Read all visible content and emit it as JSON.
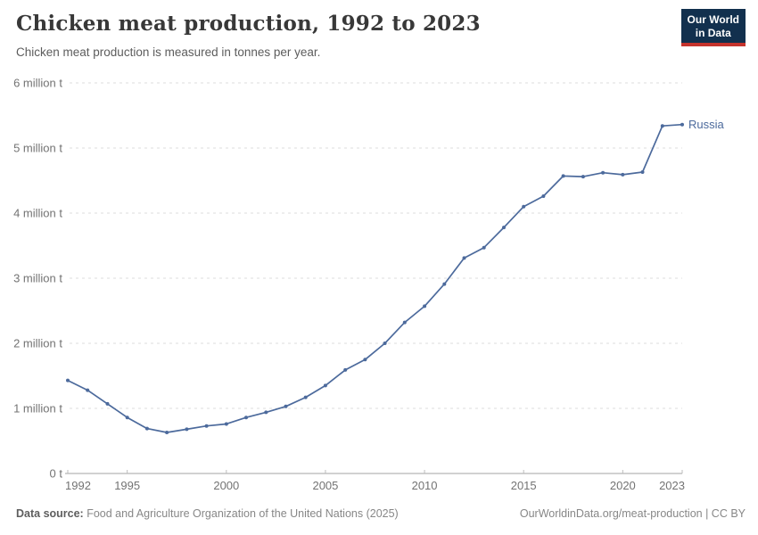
{
  "header": {
    "title": "Chicken meat production, 1992 to 2023",
    "subtitle": "Chicken meat production is measured in tonnes per year.",
    "logo": {
      "line1": "Our World",
      "line2": "in Data"
    }
  },
  "chart_data": {
    "type": "line",
    "title": "Chicken meat production, 1992 to 2023",
    "xlabel": "",
    "ylabel": "",
    "value_unit": "million tonnes per year",
    "grid": "dashed horizontal gridlines",
    "legend_position": "end-of-line label",
    "ylim": [
      0,
      6
    ],
    "x": [
      1992,
      1993,
      1994,
      1995,
      1996,
      1997,
      1998,
      1999,
      2000,
      2001,
      2002,
      2003,
      2004,
      2005,
      2006,
      2007,
      2008,
      2009,
      2010,
      2011,
      2012,
      2013,
      2014,
      2015,
      2016,
      2017,
      2018,
      2019,
      2020,
      2021,
      2022,
      2023
    ],
    "series": [
      {
        "name": "Russia",
        "color": "#4c6a9c",
        "values": [
          1.43,
          1.28,
          1.07,
          0.86,
          0.69,
          0.63,
          0.68,
          0.73,
          0.76,
          0.86,
          0.94,
          1.03,
          1.17,
          1.35,
          1.59,
          1.75,
          2.0,
          2.32,
          2.57,
          2.91,
          3.31,
          3.47,
          3.78,
          4.1,
          4.26,
          4.57,
          4.56,
          4.62,
          4.59,
          4.63,
          5.34,
          5.36
        ]
      }
    ],
    "y_ticks": [
      {
        "value": 0,
        "label": "0 t"
      },
      {
        "value": 1,
        "label": "1 million t"
      },
      {
        "value": 2,
        "label": "2 million t"
      },
      {
        "value": 3,
        "label": "3 million t"
      },
      {
        "value": 4,
        "label": "4 million t"
      },
      {
        "value": 5,
        "label": "5 million t"
      },
      {
        "value": 6,
        "label": "6 million t"
      }
    ],
    "x_ticks": [
      {
        "value": 1992,
        "label": "1992"
      },
      {
        "value": 1995,
        "label": "1995"
      },
      {
        "value": 2000,
        "label": "2000"
      },
      {
        "value": 2005,
        "label": "2005"
      },
      {
        "value": 2010,
        "label": "2010"
      },
      {
        "value": 2015,
        "label": "2015"
      },
      {
        "value": 2020,
        "label": "2020"
      },
      {
        "value": 2023,
        "label": "2023"
      }
    ]
  },
  "footer": {
    "source_label": "Data source:",
    "source_text": " Food and Agriculture Organization of the United Nations (2025)",
    "link_text": "OurWorldinData.org/meat-production | CC BY"
  },
  "colors": {
    "line": "#4c6a9c",
    "series_label": "#4c6a9c",
    "gridline": "#dedede",
    "axis_line": "#a3a3a3",
    "tick_mark": "#bdbdbd",
    "tick_text": "#737373",
    "title_text": "#383838",
    "subtitle_text": "#5c5c5c",
    "footer_text": "#878787",
    "logo_bg": "#12304e",
    "logo_red": "#c5332d"
  }
}
